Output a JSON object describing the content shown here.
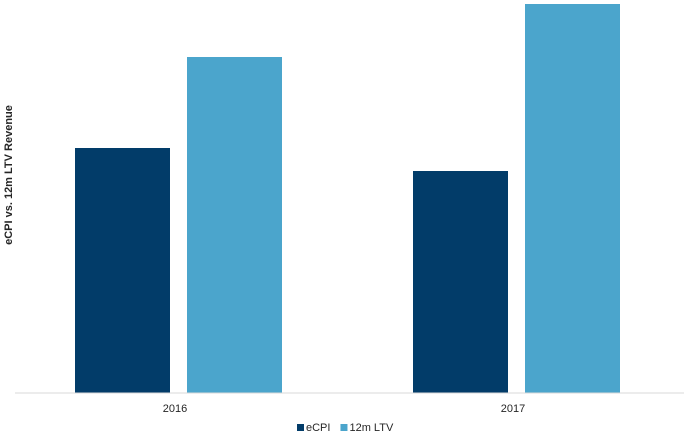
{
  "chart_data": {
    "type": "bar",
    "y_label": "eCPI vs. 12m LTV Revenue",
    "categories": [
      "2016",
      "2017"
    ],
    "series": [
      {
        "name": "eCPI",
        "color": "#023c69",
        "values": [
          2.45,
          2.22
        ]
      },
      {
        "name": "12m LTV",
        "color": "#4ba5cc",
        "values": [
          3.36,
          3.89
        ]
      }
    ],
    "ylim": [
      0,
      3.9
    ],
    "legend": "bottom"
  }
}
